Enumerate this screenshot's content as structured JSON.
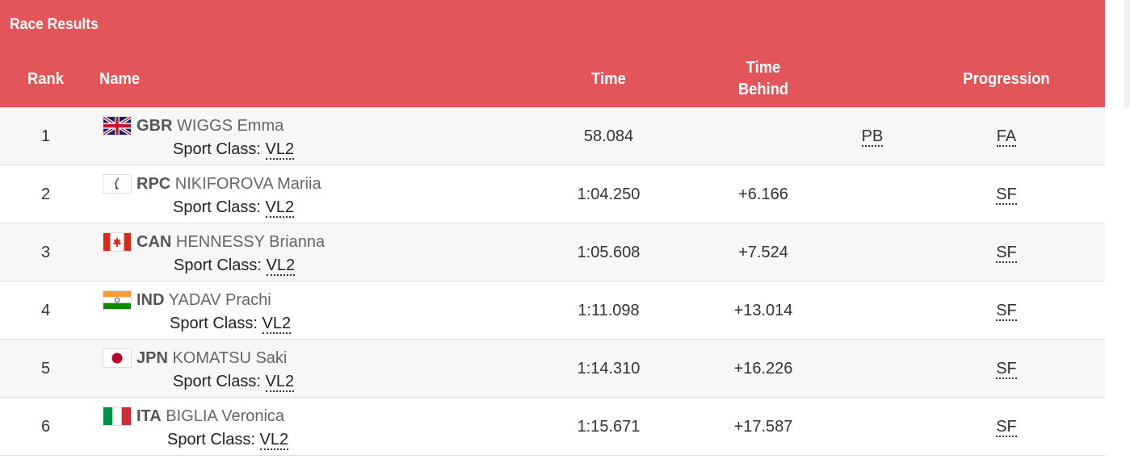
{
  "header": {
    "title": "Race Results",
    "columns": {
      "rank": "Rank",
      "name": "Name",
      "time": "Time",
      "time_behind_1": "Time",
      "time_behind_2": "Behind",
      "progression": "Progression"
    }
  },
  "sport_class_label": "Sport Class:",
  "rows": [
    {
      "rank": "1",
      "noc": "GBR",
      "name": "WIGGS Emma",
      "sport_class": "VL2",
      "time": "58.084",
      "time_behind": "",
      "record": "PB",
      "progression": "FA",
      "flag": "gbr-flag-icon"
    },
    {
      "rank": "2",
      "noc": "RPC",
      "name": "NIKIFOROVA Mariia",
      "sport_class": "VL2",
      "time": "1:04.250",
      "time_behind": "+6.166",
      "record": "",
      "progression": "SF",
      "flag": "rpc-flag-icon"
    },
    {
      "rank": "3",
      "noc": "CAN",
      "name": "HENNESSY Brianna",
      "sport_class": "VL2",
      "time": "1:05.608",
      "time_behind": "+7.524",
      "record": "",
      "progression": "SF",
      "flag": "can-flag-icon"
    },
    {
      "rank": "4",
      "noc": "IND",
      "name": "YADAV Prachi",
      "sport_class": "VL2",
      "time": "1:11.098",
      "time_behind": "+13.014",
      "record": "",
      "progression": "SF",
      "flag": "ind-flag-icon"
    },
    {
      "rank": "5",
      "noc": "JPN",
      "name": "KOMATSU Saki",
      "sport_class": "VL2",
      "time": "1:14.310",
      "time_behind": "+16.226",
      "record": "",
      "progression": "SF",
      "flag": "jpn-flag-icon"
    },
    {
      "rank": "6",
      "noc": "ITA",
      "name": "BIGLIA Veronica",
      "sport_class": "VL2",
      "time": "1:15.671",
      "time_behind": "+17.587",
      "record": "",
      "progression": "SF",
      "flag": "ita-flag-icon"
    }
  ],
  "colors": {
    "header_bg": "#e2565a",
    "row_alt": "#f7f7f7"
  }
}
